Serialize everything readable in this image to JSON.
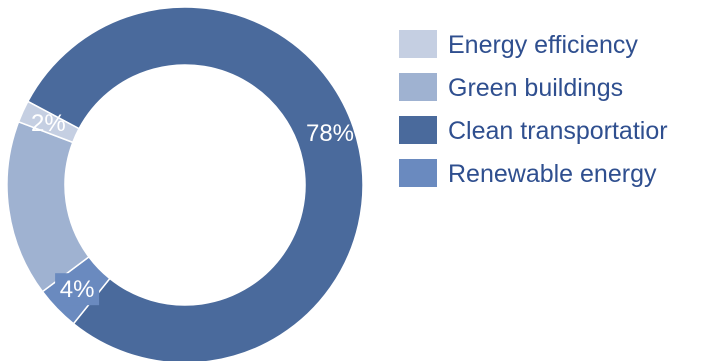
{
  "chart_data": {
    "type": "pie",
    "style": "donut",
    "categories": [
      "Energy efficiency",
      "Green buildings",
      "Clean transportation",
      "Renewable energy"
    ],
    "values": [
      2,
      16,
      78,
      4
    ],
    "labels": [
      "2%",
      "",
      "78%",
      "4%"
    ],
    "legend": {
      "placement": "right",
      "entries": [
        "Energy efficiency",
        "Green buildings",
        "Clean transportatior",
        "Renewable energy"
      ]
    },
    "colors": [
      "#c5cfe2",
      "#9fb2d1",
      "#4a6a9c",
      "#6a8abf"
    ],
    "grid": false
  }
}
